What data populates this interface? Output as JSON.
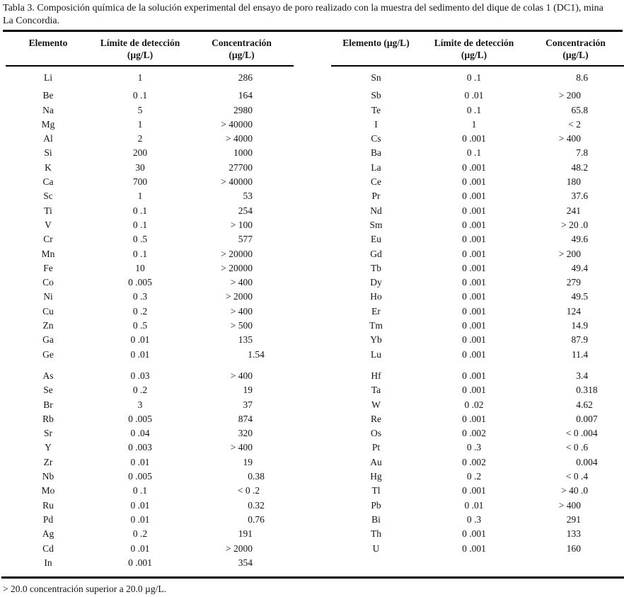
{
  "title": {
    "line1": "Tabla 3. Composición química de la solución experimental del ensayo de poro realizado con la muestra del sedimento del dique de colas 1 (DC1), mina",
    "line2": "La Concordia."
  },
  "footnote": "> 20.0 concentración superior a 20.0 µg/L.",
  "chart_data": {
    "type": "table",
    "title": "Tabla 3. Composición química de la solución experimental del ensayo de poro (DC1), mina La Concordia",
    "columns": [
      "Elemento",
      "Límite de detección (µg/L)",
      "Concentración (µg/L)"
    ]
  },
  "tables": [
    {
      "id": "left",
      "headers": [
        {
          "key": "elemento",
          "label": "Elemento",
          "unit": ""
        },
        {
          "key": "limite-deteccion",
          "label": "Límite de detección",
          "unit": "(µg/L)"
        },
        {
          "key": "concentracion",
          "label": "Concentración",
          "unit": "(µg/L)"
        }
      ],
      "groups": [
        [
          [
            "Li",
            "1",
            "286"
          ],
          [
            "Be",
            "0 .1",
            "164"
          ],
          [
            "Na",
            "5",
            "2980"
          ],
          [
            "Mg",
            "1",
            "> 40000"
          ],
          [
            "Al",
            "2",
            "> 4000"
          ],
          [
            "Si",
            "200",
            "1000"
          ],
          [
            "K",
            "30",
            "27700"
          ],
          [
            "Ca",
            "700",
            "> 40000"
          ],
          [
            "Sc",
            "1",
            "53"
          ],
          [
            "Ti",
            "0 .1",
            "254"
          ],
          [
            "V",
            "0 .1",
            "> 100"
          ],
          [
            "Cr",
            "0 .5",
            "577"
          ],
          [
            "Mn",
            "0 .1",
            "> 20000"
          ],
          [
            "Fe",
            "10",
            "> 20000"
          ],
          [
            "Co",
            "0 .005",
            "> 400"
          ],
          [
            "Ni",
            "0 .3",
            "> 2000"
          ],
          [
            "Cu",
            "0 .2",
            "> 400"
          ],
          [
            "Zn",
            "0 .5",
            "> 500"
          ],
          [
            "Ga",
            "0 .01",
            "135"
          ],
          [
            "Ge",
            "0 .01",
            "1.54"
          ]
        ],
        [
          [
            "As",
            "0 .03",
            "> 400"
          ],
          [
            "Se",
            "0 .2",
            "19"
          ],
          [
            "Br",
            "3",
            "37"
          ],
          [
            "Rb",
            "0 .005",
            "874"
          ],
          [
            "Sr",
            "0 .04",
            "320"
          ],
          [
            "Y",
            "0 .003",
            "> 400"
          ],
          [
            "Zr",
            "0 .01",
            "19"
          ],
          [
            "Nb",
            "0 .005",
            "0.38"
          ],
          [
            "Mo",
            "0 .1",
            "< 0 .2"
          ],
          [
            "Ru",
            "0 .01",
            "0.32"
          ],
          [
            "Pd",
            "0 .01",
            "0.76"
          ],
          [
            "Ag",
            "0 .2",
            "191"
          ],
          [
            "Cd",
            "0 .01",
            "> 2000"
          ],
          [
            "In",
            "0 .001",
            "354"
          ]
        ]
      ]
    },
    {
      "id": "right",
      "headers": [
        {
          "key": "elemento",
          "label": "Elemento (µg/L)",
          "unit": ""
        },
        {
          "key": "limite-deteccion",
          "label": "Límite de detección",
          "unit": "(µg/L)"
        },
        {
          "key": "concentracion",
          "label": "Concentración",
          "unit": "(µg/L)"
        }
      ],
      "groups": [
        [
          [
            "Sn",
            "0 .1",
            "8.6"
          ],
          [
            "Sb",
            "0 .01",
            "> 200"
          ],
          [
            "Te",
            "0 .1",
            "65.8"
          ],
          [
            "I",
            "1",
            "< 2"
          ],
          [
            "Cs",
            "0 .001",
            "> 400"
          ],
          [
            "Ba",
            "0 .1",
            "7.8"
          ],
          [
            "La",
            "0 .001",
            "48.2"
          ],
          [
            "Ce",
            "0 .001",
            "180"
          ],
          [
            "Pr",
            "0 .001",
            "37.6"
          ],
          [
            "Nd",
            "0 .001",
            "241"
          ],
          [
            "Sm",
            "0 .001",
            "> 20 .0"
          ],
          [
            "Eu",
            "0 .001",
            "49.6"
          ],
          [
            "Gd",
            "0 .001",
            "> 200"
          ],
          [
            "Tb",
            "0 .001",
            "49.4"
          ],
          [
            "Dy",
            "0 .001",
            "279"
          ],
          [
            "Ho",
            "0 .001",
            "49.5"
          ],
          [
            "Er",
            "0 .001",
            "124"
          ],
          [
            "Tm",
            "0 .001",
            "14.9"
          ],
          [
            "Yb",
            "0 .001",
            "87.9"
          ],
          [
            "Lu",
            "0 .001",
            "11.4"
          ]
        ],
        [
          [
            "Hf",
            "0 .001",
            "3.4"
          ],
          [
            "Ta",
            "0 .001",
            "0.318"
          ],
          [
            "W",
            "0 .02",
            "4.62"
          ],
          [
            "Re",
            "0 .001",
            "0.007"
          ],
          [
            "Os",
            "0 .002",
            "< 0 .004"
          ],
          [
            "Pt",
            "0 .3",
            "< 0 .6"
          ],
          [
            "Au",
            "0 .002",
            "0.004"
          ],
          [
            "Hg",
            "0 .2",
            "< 0 .4"
          ],
          [
            "Tl",
            "0 .001",
            "> 40 .0"
          ],
          [
            "Pb",
            "0 .01",
            "> 400"
          ],
          [
            "Bi",
            "0 .3",
            "291"
          ],
          [
            "Th",
            "0 .001",
            "133"
          ],
          [
            "U",
            "0 .001",
            "160"
          ]
        ]
      ]
    }
  ]
}
